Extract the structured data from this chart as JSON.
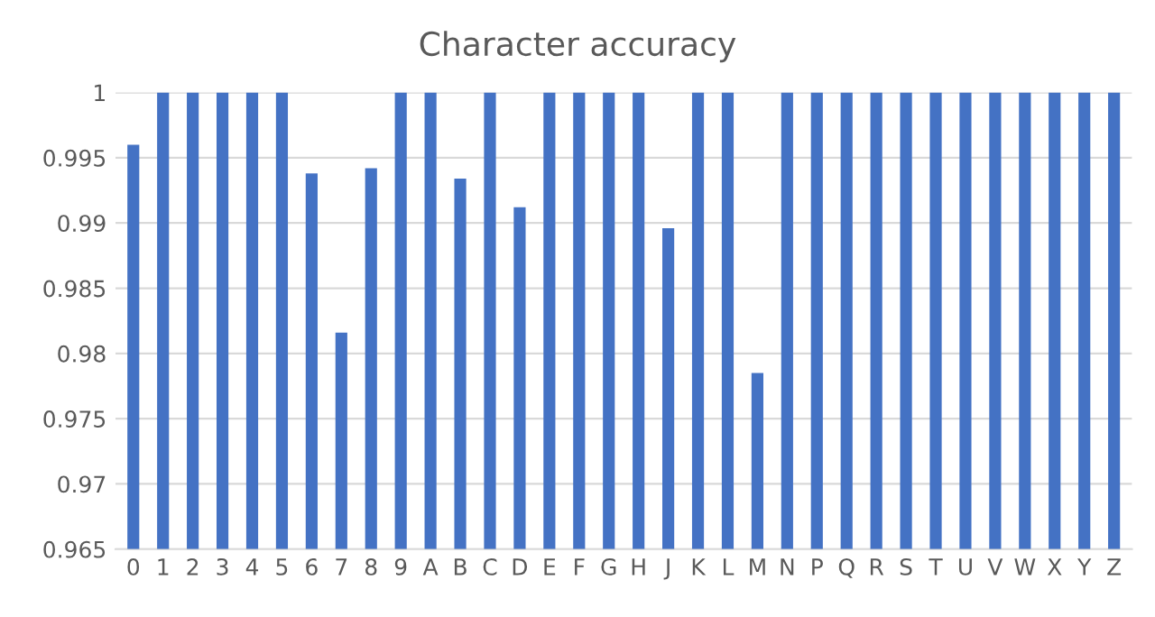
{
  "chart_data": {
    "type": "bar",
    "title": "Character accuracy",
    "categories": [
      "0",
      "1",
      "2",
      "3",
      "4",
      "5",
      "6",
      "7",
      "8",
      "9",
      "A",
      "B",
      "C",
      "D",
      "E",
      "F",
      "G",
      "H",
      "J",
      "K",
      "L",
      "M",
      "N",
      "P",
      "Q",
      "R",
      "S",
      "T",
      "U",
      "V",
      "W",
      "X",
      "Y",
      "Z"
    ],
    "values": [
      0.996,
      1,
      1,
      1,
      1,
      1,
      0.9938,
      0.9816,
      0.9942,
      1,
      1,
      0.9934,
      1,
      0.9912,
      1,
      1,
      1,
      1,
      0.9896,
      1,
      1,
      0.9785,
      1,
      1,
      1,
      1,
      1,
      1,
      1,
      1,
      1,
      1,
      1,
      1
    ],
    "color": "#4472c4",
    "ylim": [
      0.965,
      1
    ],
    "yticks": [
      {
        "value": 0.965,
        "label": "0.965"
      },
      {
        "value": 0.97,
        "label": "0.97"
      },
      {
        "value": 0.975,
        "label": "0.975"
      },
      {
        "value": 0.98,
        "label": "0.98"
      },
      {
        "value": 0.985,
        "label": "0.985"
      },
      {
        "value": 0.99,
        "label": "0.99"
      },
      {
        "value": 0.995,
        "label": "0.995"
      },
      {
        "value": 1,
        "label": "1"
      }
    ],
    "grid": "y"
  }
}
